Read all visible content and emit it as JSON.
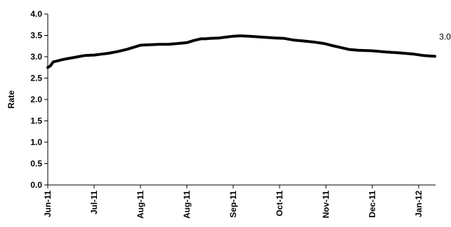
{
  "chart_data": {
    "type": "line",
    "ylabel": "Rate",
    "ylim": [
      0.0,
      4.0
    ],
    "y_ticks": [
      "0.0",
      "0.5",
      "1.0",
      "1.5",
      "2.0",
      "2.5",
      "3.0",
      "3.5",
      "4.0"
    ],
    "x_tick_labels": [
      "Jun-11",
      "Jul-11",
      "Aug-11",
      "Aug-11",
      "Sep-11",
      "Oct-11",
      "Nov-11",
      "Dec-11",
      "Jan-12"
    ],
    "grid": false,
    "legend": "none",
    "series": [
      {
        "line_color": "#000000",
        "x": [
          "Jun-11",
          "Jul-11",
          "Aug-11",
          "Aug-11",
          "Sep-11",
          "Oct-11",
          "Nov-11",
          "Dec-11",
          "Jan-12"
        ],
        "points": [
          [
            0.0,
            2.75
          ],
          [
            0.05,
            2.78
          ],
          [
            0.12,
            2.88
          ],
          [
            0.2,
            2.9
          ],
          [
            0.3,
            2.93
          ],
          [
            0.45,
            2.96
          ],
          [
            0.6,
            2.99
          ],
          [
            0.8,
            3.03
          ],
          [
            1.0,
            3.04
          ],
          [
            1.15,
            3.06
          ],
          [
            1.3,
            3.08
          ],
          [
            1.5,
            3.12
          ],
          [
            1.7,
            3.17
          ],
          [
            1.85,
            3.22
          ],
          [
            2.0,
            3.27
          ],
          [
            2.2,
            3.28
          ],
          [
            2.4,
            3.29
          ],
          [
            2.6,
            3.29
          ],
          [
            2.8,
            3.31
          ],
          [
            3.0,
            3.33
          ],
          [
            3.15,
            3.38
          ],
          [
            3.3,
            3.42
          ],
          [
            3.4,
            3.42
          ],
          [
            3.5,
            3.43
          ],
          [
            3.7,
            3.44
          ],
          [
            3.85,
            3.46
          ],
          [
            4.0,
            3.48
          ],
          [
            4.15,
            3.49
          ],
          [
            4.35,
            3.48
          ],
          [
            4.6,
            3.46
          ],
          [
            4.9,
            3.44
          ],
          [
            5.1,
            3.43
          ],
          [
            5.3,
            3.39
          ],
          [
            5.5,
            3.37
          ],
          [
            5.7,
            3.35
          ],
          [
            5.9,
            3.32
          ],
          [
            6.0,
            3.3
          ],
          [
            6.1,
            3.27
          ],
          [
            6.3,
            3.22
          ],
          [
            6.5,
            3.17
          ],
          [
            6.7,
            3.15
          ],
          [
            7.0,
            3.14
          ],
          [
            7.3,
            3.11
          ],
          [
            7.6,
            3.09
          ],
          [
            7.9,
            3.06
          ],
          [
            8.1,
            3.03
          ],
          [
            8.35,
            3.01
          ]
        ]
      }
    ],
    "end_label": "3.01"
  }
}
